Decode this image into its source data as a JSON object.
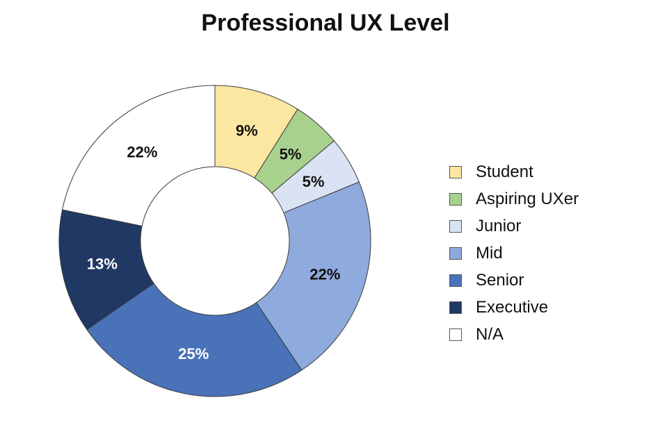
{
  "chart_data": {
    "type": "pie",
    "donut": true,
    "title": "Professional UX Level",
    "legend_position": "right",
    "categories": [
      "Student",
      "Aspiring UXer",
      "Junior",
      "Mid",
      "Senior",
      "Executive",
      "N/A"
    ],
    "values": [
      9,
      5,
      5,
      22,
      25,
      13,
      22
    ],
    "labels": [
      "9%",
      "5%",
      "5%",
      "22%",
      "25%",
      "13%",
      "22%"
    ],
    "colors": [
      "#fbe6a2",
      "#a9d18e",
      "#dae3f3",
      "#8faadc",
      "#4a72b8",
      "#203864",
      "#ffffff"
    ],
    "label_colors": [
      "#111111",
      "#111111",
      "#111111",
      "#111111",
      "#ffffff",
      "#ffffff",
      "#111111"
    ]
  }
}
